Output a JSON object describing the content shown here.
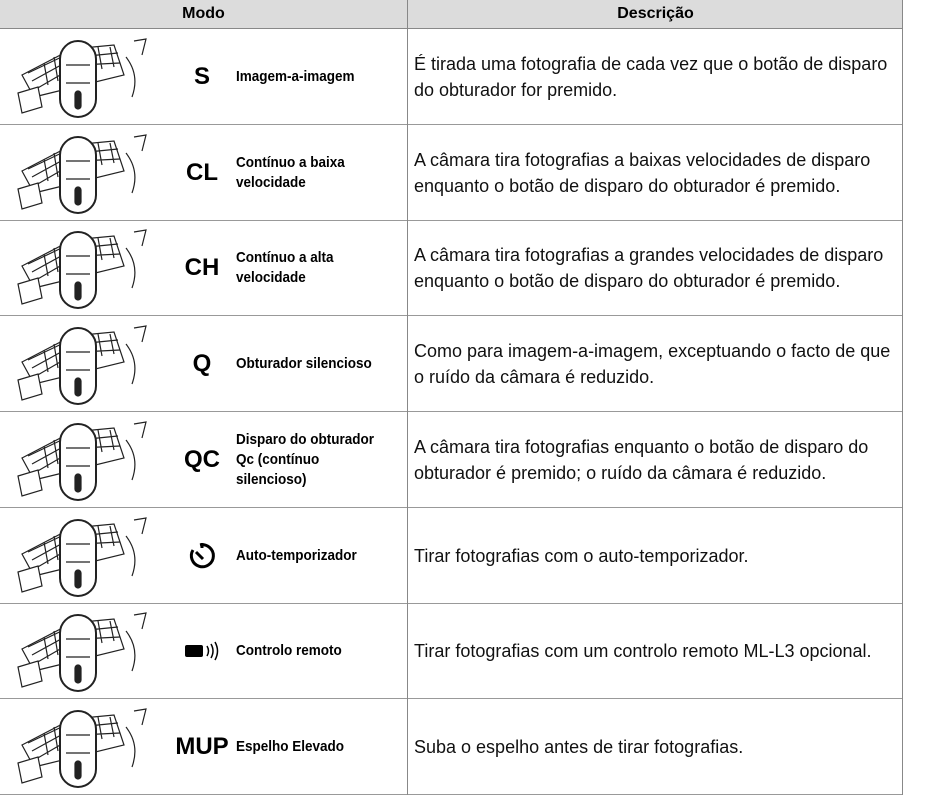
{
  "table": {
    "header": [
      "Modo",
      "Descrição"
    ],
    "rows": [
      {
        "symbol": "S",
        "name": "Imagem-a-imagem",
        "description": "É tirada uma fotografia de cada vez que o botão de disparo do obturador for premido."
      },
      {
        "symbol": "CL",
        "name": "Contínuo a baixa velocidade",
        "description": "A câmara tira fotografias a baixas velocidades de disparo enquanto o botão de disparo do obturador é premido."
      },
      {
        "symbol": "CH",
        "name": "Contínuo a alta velocidade",
        "description": "A câmara tira fotografias a grandes velocidades de disparo enquanto o botão de disparo do obturador é premido."
      },
      {
        "symbol": "Q",
        "name": "Obturador silencioso",
        "description": "Como para imagem-a-imagem, exceptuando o facto de que o ruído da câmara é reduzido."
      },
      {
        "symbol": "QC",
        "name": "Disparo do obturador Qc (contínuo silencioso)",
        "description": "A câmara tira fotografias enquanto o botão de disparo do obturador é premido; o ruído da câmara é reduzido."
      },
      {
        "name": "Auto-temporizador",
        "description": "Tirar fotografias com o auto-temporizador."
      },
      {
        "name": "Controlo remoto",
        "description": "Tirar fotografias com um controlo remoto ML-L3 opcional."
      },
      {
        "symbol": "MUP",
        "name": "Espelho Elevado",
        "description": "Suba o espelho antes de tirar fotografias."
      }
    ]
  }
}
